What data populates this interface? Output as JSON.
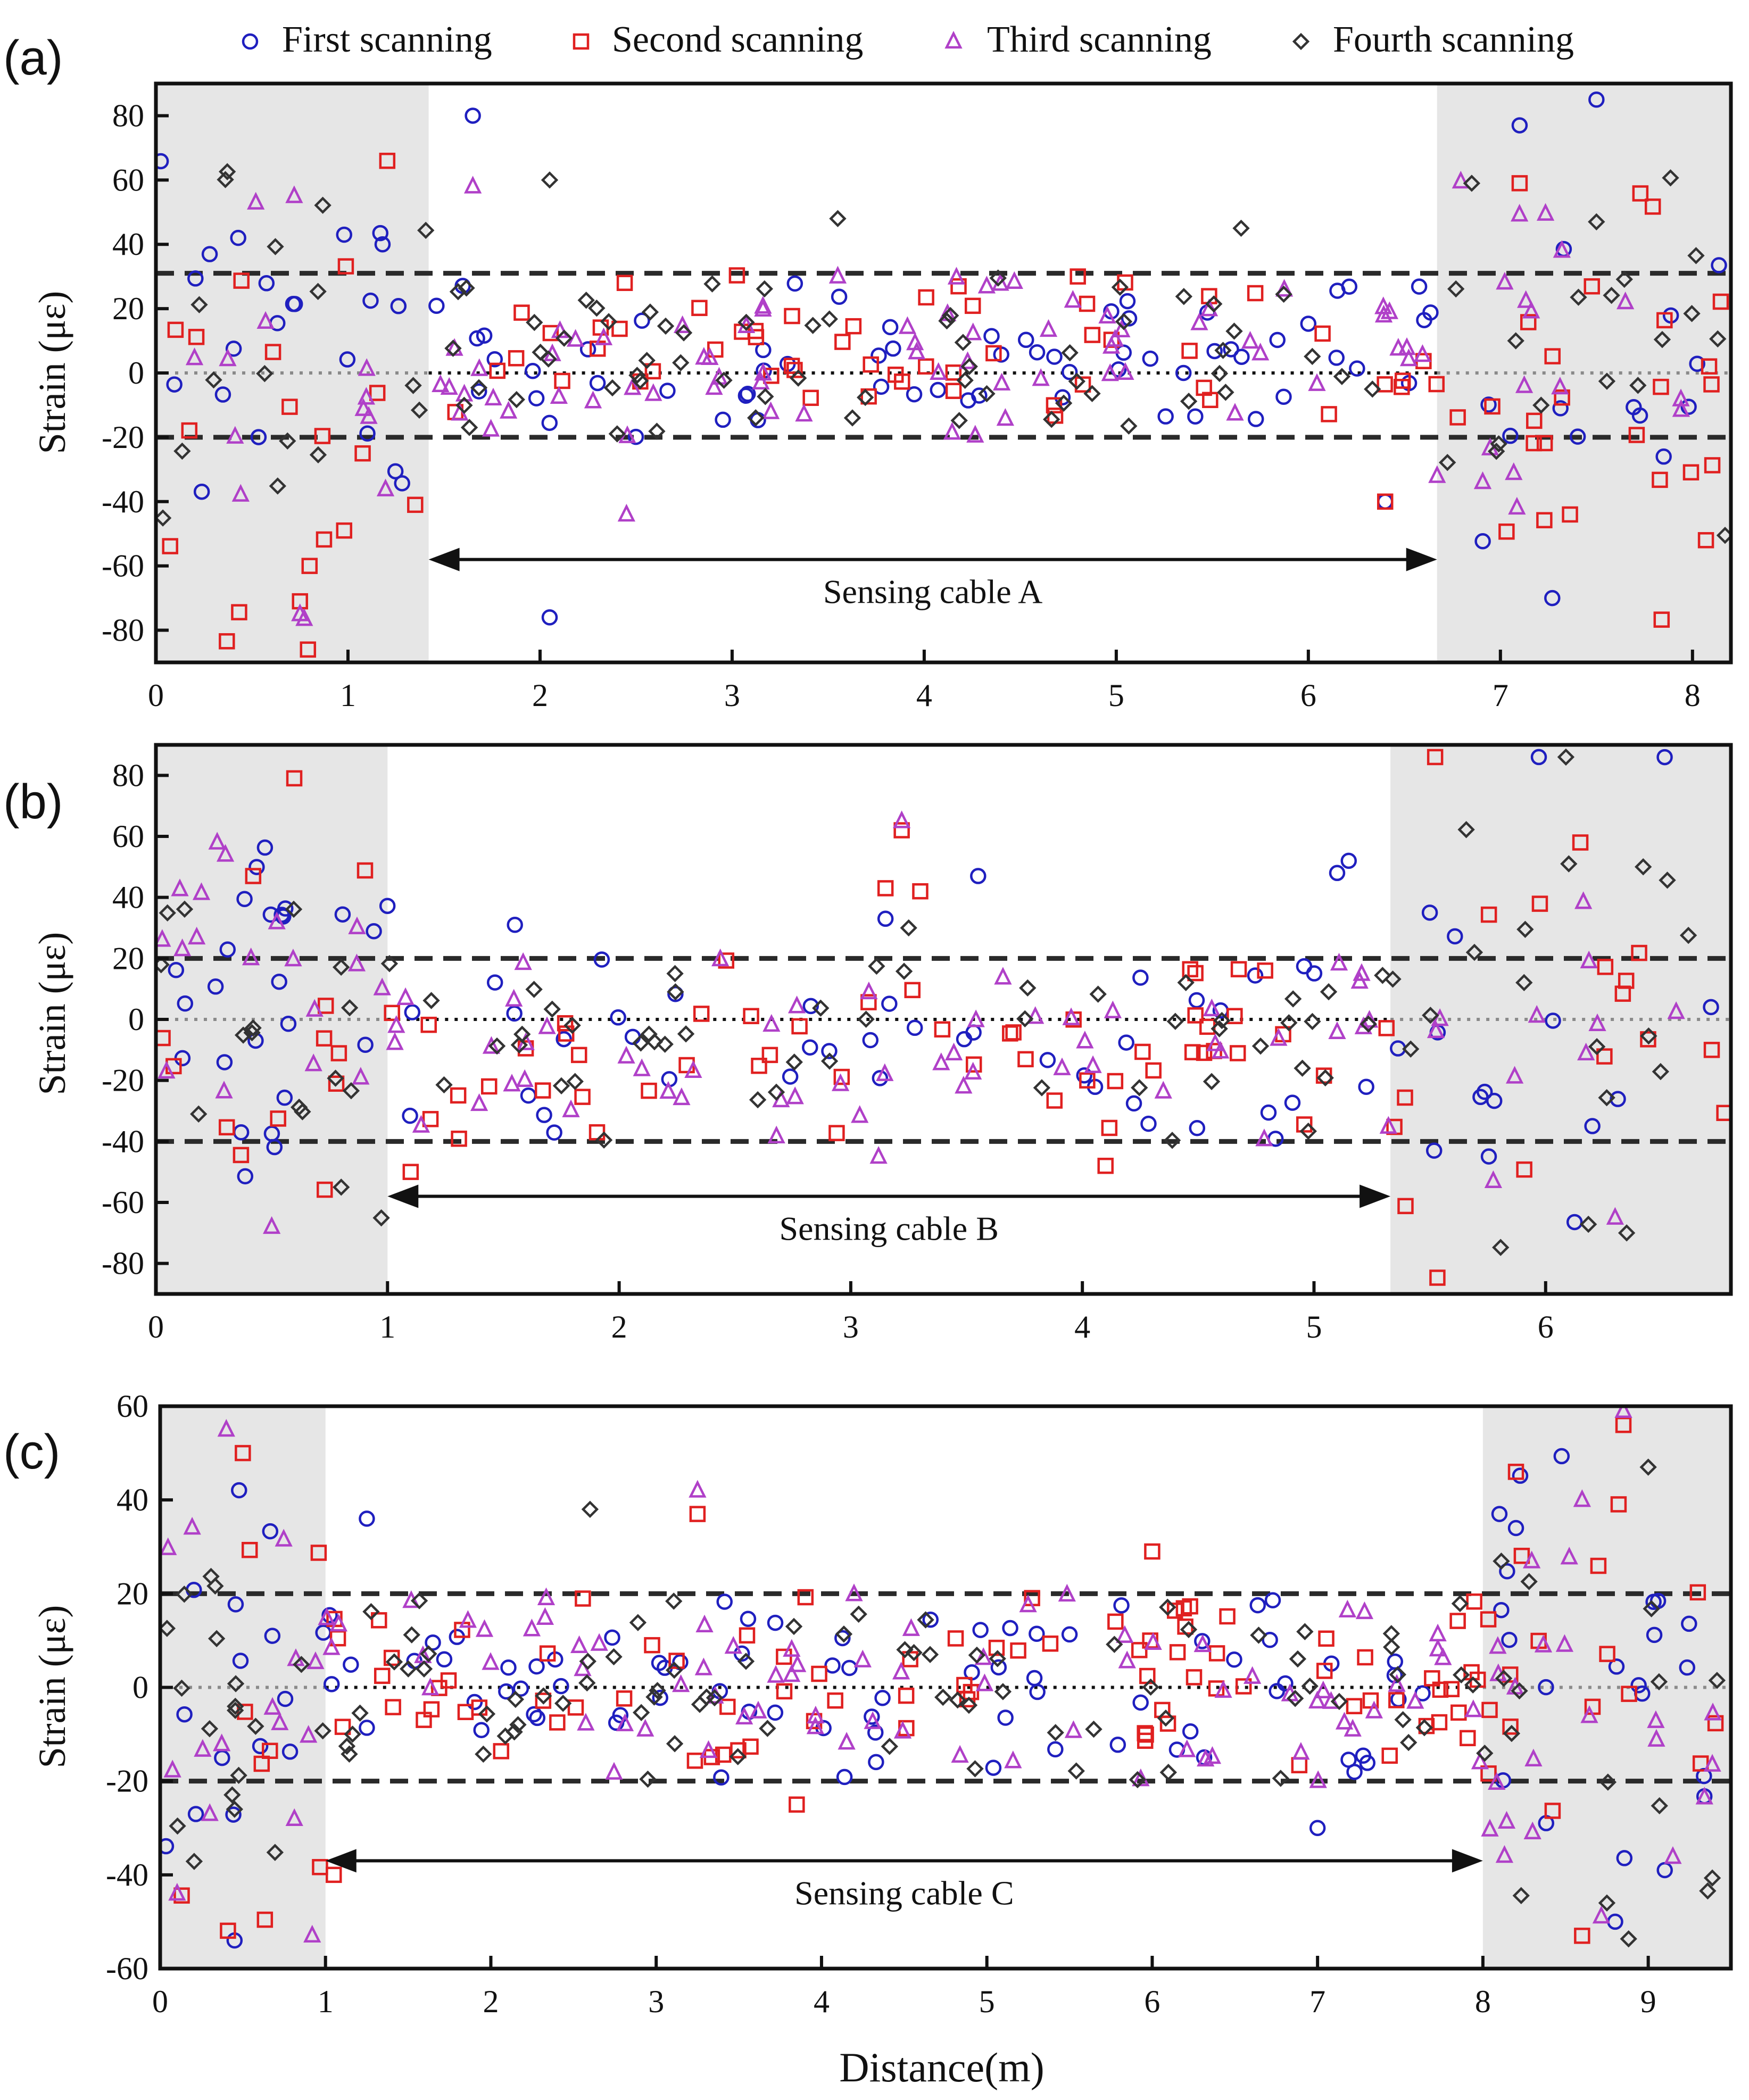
{
  "legend": {
    "items": [
      {
        "label": "First scanning",
        "marker": "circle",
        "color": "#1f1fbf"
      },
      {
        "label": "Second scanning",
        "marker": "square",
        "color": "#e02020"
      },
      {
        "label": "Third scanning",
        "marker": "triangle",
        "color": "#b040c8"
      },
      {
        "label": "Fourth scanning",
        "marker": "diamond",
        "color": "#333333"
      }
    ]
  },
  "colors": {
    "shade": "#e6e6e6",
    "first": "#1f1fbf",
    "second": "#e02020",
    "third": "#b040c8",
    "fourth": "#333333"
  },
  "xlabel": "Distance(m)",
  "chart_data": [
    {
      "panel_label": "(a)",
      "type": "scatter",
      "ylabel": "Strain (με)",
      "xlim": [
        0,
        8.2
      ],
      "ylim": [
        -90,
        90
      ],
      "xticks": [
        0,
        1,
        2,
        3,
        4,
        5,
        6,
        7,
        8
      ],
      "yticks": [
        -80,
        -60,
        -40,
        -20,
        0,
        20,
        40,
        60,
        80
      ],
      "shaded_regions": [
        [
          0,
          1.42
        ],
        [
          6.67,
          8.2
        ]
      ],
      "threshold_lines": [
        31,
        -20
      ],
      "zero_line": 0,
      "span_annotation": {
        "label": "Sensing cable A",
        "from": 1.42,
        "to": 6.67,
        "y": -58
      },
      "seed": 11,
      "point_count": 95,
      "series": [
        {
          "name": "First scanning",
          "marker": "circle",
          "highlights": [
            [
              1.65,
              80
            ],
            [
              2.05,
              -76
            ],
            [
              7.5,
              85
            ],
            [
              7.27,
              -70
            ],
            [
              7.85,
              -26
            ],
            [
              0.98,
              43
            ],
            [
              1.18,
              40
            ],
            [
              7.1,
              77
            ],
            [
              6.4,
              -40
            ]
          ]
        },
        {
          "name": "Second scanning",
          "marker": "square",
          "highlights": [
            [
              0.98,
              -49
            ],
            [
              0.8,
              -60
            ],
            [
              0.75,
              -71
            ],
            [
              1.35,
              -41
            ],
            [
              7.1,
              59
            ],
            [
              8.07,
              -52
            ],
            [
              6.4,
              -40
            ],
            [
              4.8,
              30
            ]
          ]
        },
        {
          "name": "Third scanning",
          "marker": "triangle",
          "highlights": [
            [
              0.52,
              53
            ],
            [
              0.72,
              55
            ],
            [
              1.65,
              58
            ],
            [
              2.45,
              -44
            ],
            [
              3.55,
              30
            ],
            [
              7.32,
              38
            ],
            [
              0.75,
              -75
            ]
          ]
        },
        {
          "name": "Fourth scanning",
          "marker": "diamond",
          "highlights": [
            [
              2.05,
              60
            ],
            [
              3.55,
              48
            ],
            [
              5.65,
              45
            ],
            [
              7.5,
              47
            ],
            [
              7.08,
              10
            ]
          ]
        }
      ]
    },
    {
      "panel_label": "(b)",
      "type": "scatter",
      "ylabel": "Strain (με)",
      "xlim": [
        0,
        6.8
      ],
      "ylim": [
        -90,
        90
      ],
      "xticks": [
        0,
        1,
        2,
        3,
        4,
        5,
        6
      ],
      "yticks": [
        -80,
        -60,
        -40,
        -20,
        0,
        20,
        40,
        60,
        80
      ],
      "shaded_regions": [
        [
          0,
          1.0
        ],
        [
          5.33,
          6.8
        ]
      ],
      "threshold_lines": [
        20,
        -40
      ],
      "zero_line": 0,
      "span_annotation": {
        "label": "Sensing cable B",
        "from": 1.0,
        "to": 5.33,
        "y": -58
      },
      "seed": 23,
      "point_count": 80,
      "series": [
        {
          "name": "First scanning",
          "marker": "circle",
          "highlights": [
            [
              3.55,
              47
            ],
            [
              5.1,
              48
            ],
            [
              5.15,
              52
            ],
            [
              3.15,
              33
            ],
            [
              1.55,
              31
            ],
            [
              5.5,
              35
            ]
          ]
        },
        {
          "name": "Second scanning",
          "marker": "square",
          "highlights": [
            [
              3.22,
              62
            ],
            [
              3.15,
              43
            ],
            [
              3.3,
              42
            ],
            [
              0.42,
              47
            ],
            [
              6.15,
              58
            ],
            [
              1.1,
              -50
            ],
            [
              4.1,
              -48
            ]
          ]
        },
        {
          "name": "Third scanning",
          "marker": "triangle",
          "highlights": [
            [
              3.22,
              65
            ],
            [
              0.3,
              54
            ],
            [
              0.5,
              -68
            ],
            [
              6.3,
              -65
            ],
            [
              3.12,
              -45
            ]
          ]
        },
        {
          "name": "Fourth scanning",
          "marker": "diamond",
          "highlights": [
            [
              6.35,
              -70
            ],
            [
              0.8,
              -55
            ],
            [
              6.1,
              51
            ],
            [
              3.25,
              30
            ]
          ]
        }
      ]
    },
    {
      "panel_label": "(c)",
      "type": "scatter",
      "ylabel": "Strain (με)",
      "xlim": [
        0,
        9.5
      ],
      "ylim": [
        -60,
        60
      ],
      "xticks": [
        0,
        1,
        2,
        3,
        4,
        5,
        6,
        7,
        8,
        9
      ],
      "yticks": [
        -60,
        -40,
        -20,
        0,
        20,
        40,
        60
      ],
      "shaded_regions": [
        [
          0,
          1.0
        ],
        [
          8.0,
          9.5
        ]
      ],
      "threshold_lines": [
        20,
        -20
      ],
      "zero_line": 0,
      "span_annotation": {
        "label": "Sensing cable C",
        "from": 1.0,
        "to": 8.0,
        "y": -37
      },
      "seed": 37,
      "point_count": 110,
      "series": [
        {
          "name": "First scanning",
          "marker": "circle",
          "highlights": [
            [
              0.45,
              -54
            ],
            [
              1.25,
              36
            ],
            [
              7.0,
              -30
            ],
            [
              8.1,
              37
            ],
            [
              8.2,
              34
            ],
            [
              8.8,
              -50
            ],
            [
              9.1,
              -39
            ]
          ]
        },
        {
          "name": "Second scanning",
          "marker": "square",
          "highlights": [
            [
              1.05,
              -40
            ],
            [
              3.25,
              37
            ],
            [
              6.0,
              29
            ],
            [
              8.2,
              46
            ],
            [
              8.85,
              56
            ],
            [
              8.6,
              -53
            ],
            [
              0.5,
              50
            ],
            [
              3.85,
              -25
            ]
          ]
        },
        {
          "name": "Third scanning",
          "marker": "triangle",
          "highlights": [
            [
              0.4,
              55
            ],
            [
              3.25,
              42
            ],
            [
              8.85,
              59
            ],
            [
              8.6,
              40
            ],
            [
              0.3,
              -27
            ]
          ]
        },
        {
          "name": "Fourth scanning",
          "marker": "diamond",
          "highlights": [
            [
              2.6,
              38
            ],
            [
              9.0,
              47
            ],
            [
              0.45,
              -26
            ],
            [
              8.75,
              -46
            ]
          ]
        }
      ]
    }
  ]
}
